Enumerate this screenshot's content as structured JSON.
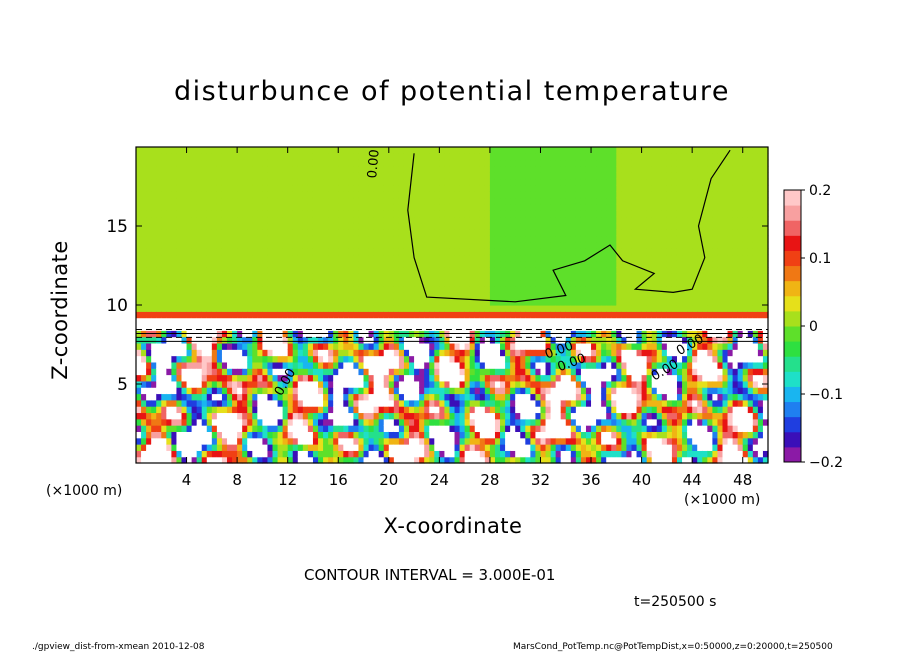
{
  "chart_data": {
    "type": "heatmap",
    "title": "disturbunce of potential temperature",
    "xlabel": "X-coordinate",
    "ylabel": "Z-coordinate",
    "x_unit": "(×1000 m)",
    "z_unit": "(×1000 m)",
    "xlim": [
      0,
      50
    ],
    "ylim": [
      0,
      20
    ],
    "x_ticks": [
      "4",
      "8",
      "12",
      "16",
      "20",
      "24",
      "28",
      "32",
      "36",
      "40",
      "44",
      "48"
    ],
    "y_ticks": [
      "5",
      "10",
      "15"
    ],
    "colorbar": {
      "range": [
        -0.2,
        0.2
      ],
      "tick_labels": [
        "0.2",
        "0.1",
        "0",
        "−0.1",
        "−0.2"
      ],
      "colors": [
        "#8b1aa6",
        "#3a0fb8",
        "#1f3ee0",
        "#1f7ff0",
        "#19b5f0",
        "#1ee0c8",
        "#24e08c",
        "#2ee040",
        "#5ee02a",
        "#a8e01c",
        "#e6e01a",
        "#f0b414",
        "#f07814",
        "#f04014",
        "#e81414",
        "#f06464",
        "#f8a0a0",
        "#ffc8c8"
      ]
    },
    "contour_label": "0.00",
    "contour_interval_text": "CONTOUR INTERVAL = 3.000E-01",
    "time_text": "t=250500 s",
    "footer_left": "./gpview_dist-from-xmean  2010-12-08",
    "footer_right": "MarsCond_PotTemp.nc@PotTempDist,x=0:50000,z=0:20000,t=250500"
  }
}
